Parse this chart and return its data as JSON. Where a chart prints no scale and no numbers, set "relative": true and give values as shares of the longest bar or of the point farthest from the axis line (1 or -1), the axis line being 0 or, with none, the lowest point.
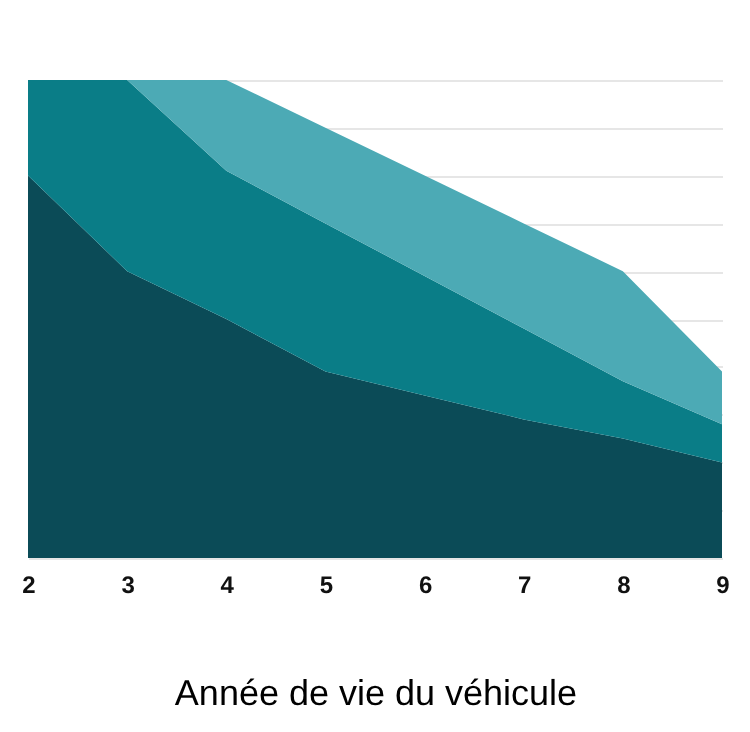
{
  "chart_data": {
    "type": "area",
    "relative": true,
    "stacked": true,
    "xlabel": "Année de vie du véhicule",
    "x": [
      2,
      3,
      4,
      5,
      6,
      7,
      8,
      9
    ],
    "xlim": [
      2,
      9
    ],
    "xticks": [
      2,
      3,
      4,
      5,
      6,
      7,
      8,
      9
    ],
    "grid": "y",
    "legend": false,
    "series": [
      {
        "color": "#0b4b57",
        "values": [
          0.8,
          0.6,
          0.5,
          0.39,
          0.34,
          0.29,
          0.25,
          0.2
        ]
      },
      {
        "color": "#0a7d87",
        "values": [
          0.2,
          0.4,
          0.31,
          0.31,
          0.25,
          0.19,
          0.12,
          0.08
        ]
      },
      {
        "color": "#4caab5",
        "values": [
          0,
          0,
          0.19,
          0.2,
          0.21,
          0.22,
          0.23,
          0.11
        ]
      }
    ]
  }
}
